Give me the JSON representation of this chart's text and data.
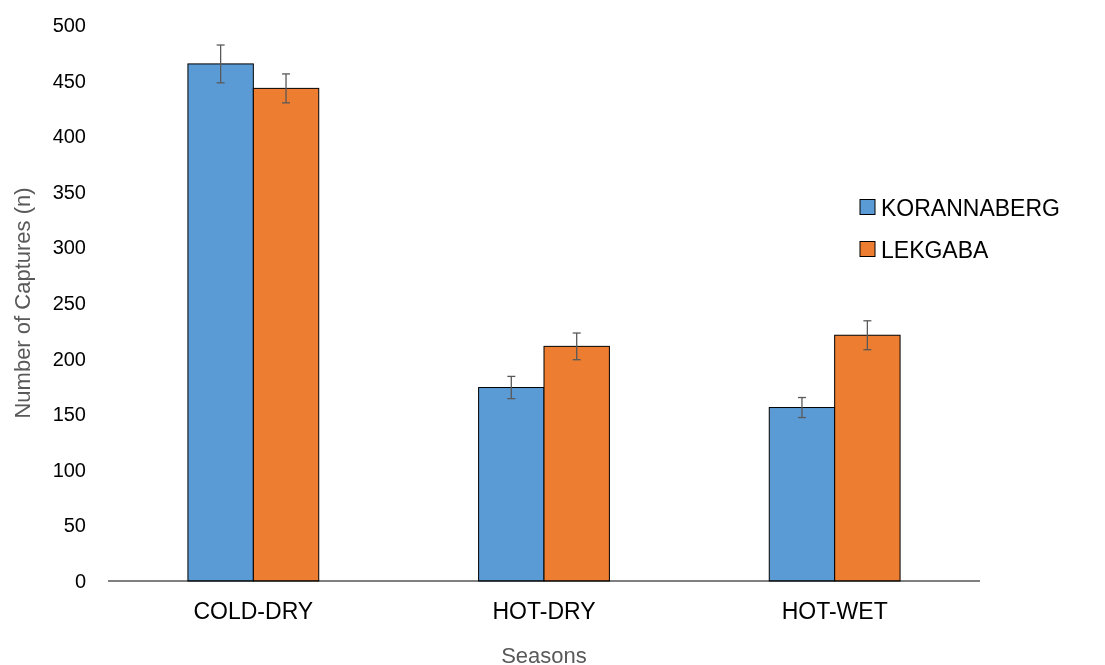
{
  "chart_data": {
    "type": "bar",
    "xlabel": "Seasons",
    "ylabel": "Number of Captures (n)",
    "categories": [
      "COLD-DRY",
      "HOT-DRY",
      "HOT-WET"
    ],
    "series": [
      {
        "name": "KORANNABERG",
        "color": "#5b9bd5",
        "values": [
          465,
          174,
          156
        ],
        "errors": [
          17,
          10,
          9
        ]
      },
      {
        "name": "LEKGABA",
        "color": "#ed7d31",
        "values": [
          443,
          211,
          221
        ],
        "errors": [
          13,
          12,
          13
        ]
      }
    ],
    "ylim": [
      0,
      500
    ],
    "yticks": [
      0,
      50,
      100,
      150,
      200,
      250,
      300,
      350,
      400,
      450,
      500
    ],
    "grid": false,
    "legend": "right"
  }
}
